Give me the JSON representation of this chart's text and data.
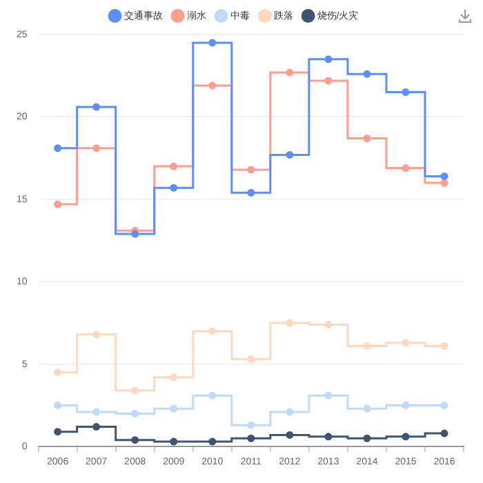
{
  "chart_data": {
    "type": "step",
    "categories": [
      "2006",
      "2007",
      "2008",
      "2009",
      "2010",
      "2011",
      "2012",
      "2013",
      "2014",
      "2015",
      "2016"
    ],
    "series": [
      {
        "name": "交通事故",
        "color": "#5b8ff9",
        "values": [
          18.1,
          20.6,
          12.9,
          15.7,
          24.5,
          15.4,
          17.7,
          23.5,
          22.6,
          21.5,
          16.4
        ]
      },
      {
        "name": "溺水",
        "color": "#ff9d8f",
        "values": [
          14.7,
          18.1,
          13.1,
          17.0,
          21.9,
          16.8,
          22.7,
          22.2,
          18.7,
          16.9,
          16.0
        ]
      },
      {
        "name": "中毒",
        "color": "#bfd9ff",
        "values": [
          2.5,
          2.1,
          2.0,
          2.3,
          3.1,
          1.3,
          2.1,
          3.1,
          2.3,
          2.5,
          2.5
        ]
      },
      {
        "name": "跌落",
        "color": "#ffd8c0",
        "values": [
          4.5,
          6.8,
          3.4,
          4.2,
          7.0,
          5.3,
          7.5,
          7.4,
          6.1,
          6.3,
          6.1
        ]
      },
      {
        "name": "烧伤/火灾",
        "color": "#3f5470",
        "values": [
          0.9,
          1.2,
          0.4,
          0.3,
          0.3,
          0.5,
          0.7,
          0.6,
          0.5,
          0.6,
          0.8
        ]
      }
    ],
    "ylim": [
      0,
      25
    ],
    "yticks": [
      0,
      5,
      10,
      15,
      20,
      25
    ],
    "grid": "y",
    "legend": "top",
    "marker": "circle"
  }
}
